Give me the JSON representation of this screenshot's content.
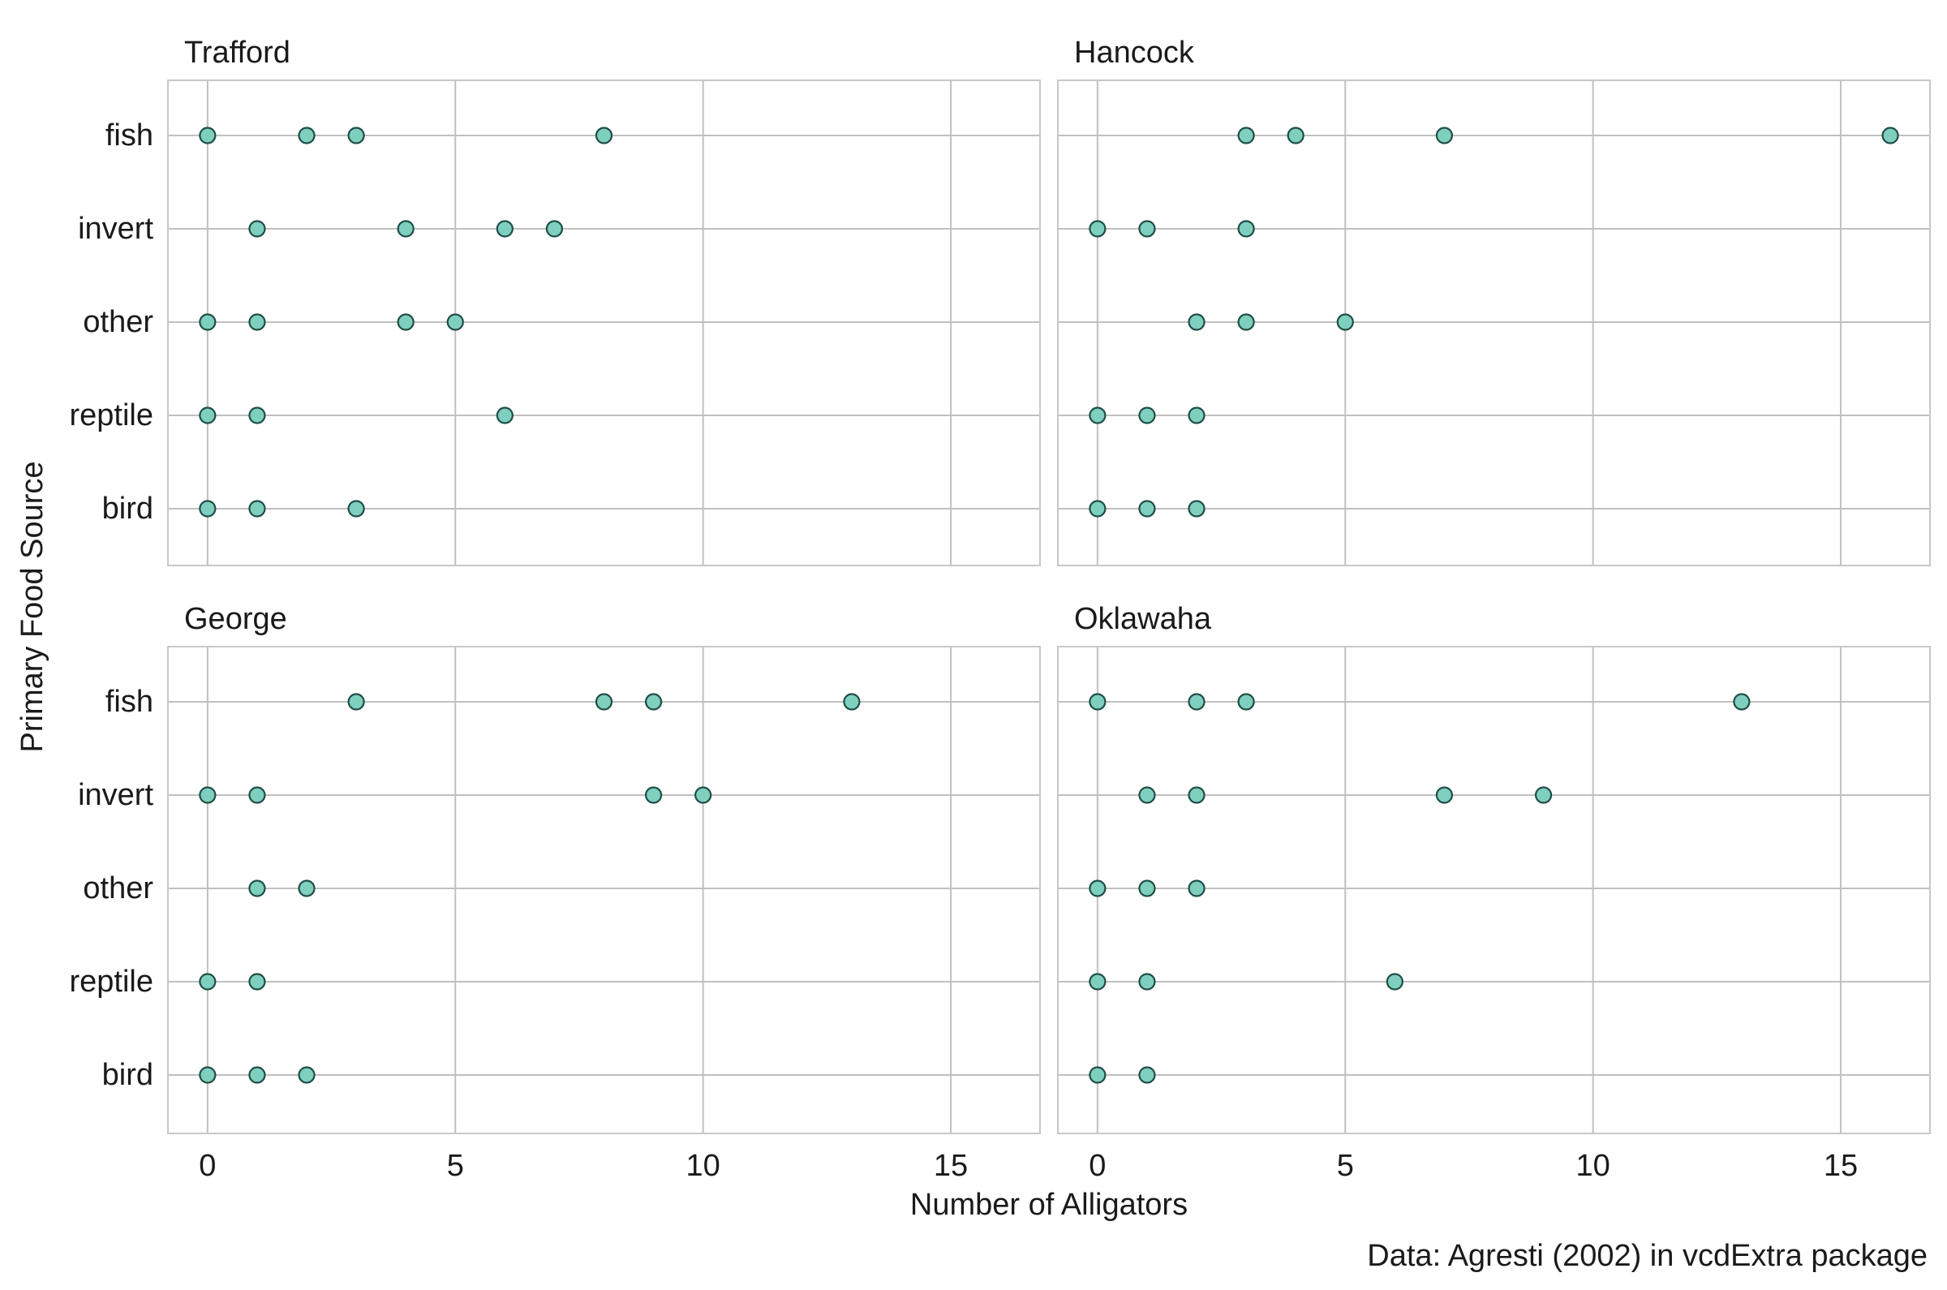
{
  "chart_data": {
    "type": "scatter",
    "xlabel": "Number of Alligators",
    "ylabel": "Primary Food Source",
    "caption": "Data: Agresti (2002) in vcdExtra package",
    "xlim": [
      -0.8,
      16.8
    ],
    "xticks": [
      0,
      5,
      10,
      15
    ],
    "categories": [
      "fish",
      "invert",
      "other",
      "reptile",
      "bird"
    ],
    "grid": true,
    "colors": {
      "point_fill": "#7fcfbf",
      "point_stroke": "#1f4d47",
      "grid": "#c0c0c0"
    },
    "facets": [
      {
        "title": "Trafford",
        "points": {
          "fish": [
            0,
            2,
            3,
            8
          ],
          "invert": [
            1,
            4,
            6,
            7
          ],
          "other": [
            0,
            1,
            4,
            5
          ],
          "reptile": [
            0,
            1,
            6
          ],
          "bird": [
            0,
            1,
            3
          ]
        }
      },
      {
        "title": "Hancock",
        "points": {
          "fish": [
            3,
            4,
            7,
            16
          ],
          "invert": [
            0,
            1,
            3
          ],
          "other": [
            2,
            3,
            5
          ],
          "reptile": [
            0,
            1,
            2
          ],
          "bird": [
            0,
            1,
            2
          ]
        }
      },
      {
        "title": "George",
        "points": {
          "fish": [
            3,
            8,
            9,
            13
          ],
          "invert": [
            0,
            1,
            9,
            10
          ],
          "other": [
            1,
            2
          ],
          "reptile": [
            0,
            1
          ],
          "bird": [
            0,
            1,
            2
          ]
        }
      },
      {
        "title": "Oklawaha",
        "points": {
          "fish": [
            0,
            2,
            3,
            13
          ],
          "invert": [
            1,
            2,
            7,
            9
          ],
          "other": [
            0,
            1,
            2
          ],
          "reptile": [
            0,
            1,
            6
          ],
          "bird": [
            0,
            1
          ]
        }
      }
    ]
  }
}
